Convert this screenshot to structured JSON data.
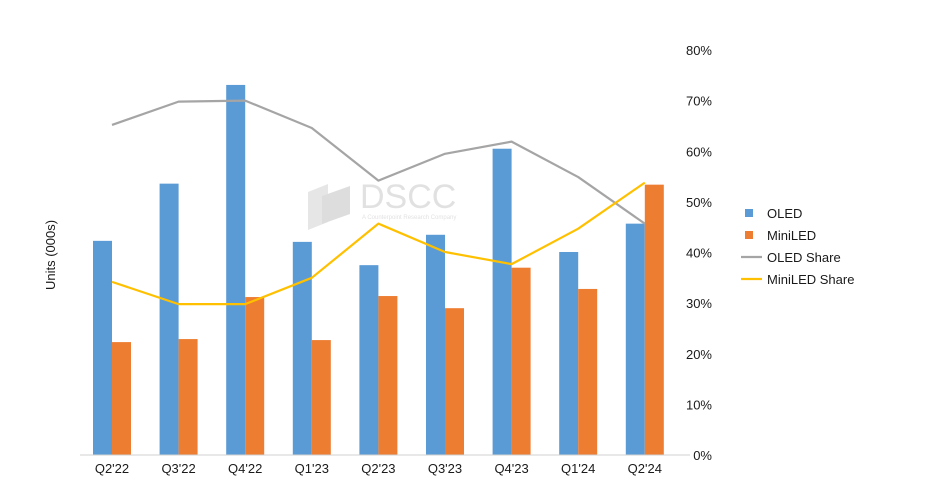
{
  "chart_data": {
    "type": "bar",
    "title": "",
    "xlabel": "",
    "ylabel": "Units  (000s)",
    "y2label": "",
    "categories": [
      "Q2'22",
      "Q3'22",
      "Q4'22",
      "Q1'23",
      "Q2'23",
      "Q3'23",
      "Q4'23",
      "Q1'24",
      "Q2'24"
    ],
    "ylim": [
      0,
      80
    ],
    "y2lim": [
      0,
      80
    ],
    "y2ticks": [
      "0%",
      "10%",
      "20%",
      "30%",
      "40%",
      "50%",
      "60%",
      "70%",
      "80%"
    ],
    "grid": false,
    "legend_position": "right",
    "series": [
      {
        "name": "OLED",
        "type": "bar",
        "axis": "left",
        "color": "#5B9BD5",
        "values": [
          42.3,
          53.6,
          73.1,
          42.1,
          37.5,
          43.5,
          60.5,
          40.1,
          45.7
        ]
      },
      {
        "name": "MiniLED",
        "type": "bar",
        "axis": "left",
        "color": "#ED7D31",
        "values": [
          22.3,
          22.9,
          31.2,
          22.7,
          31.4,
          29.0,
          37.0,
          32.8,
          53.4
        ]
      },
      {
        "name": "OLED Share",
        "type": "line",
        "axis": "right",
        "color": "#A5A5A5",
        "values": [
          65.2,
          69.8,
          70.0,
          64.6,
          54.2,
          59.5,
          61.9,
          54.9,
          45.7
        ]
      },
      {
        "name": "MiniLED Share",
        "type": "line",
        "axis": "right",
        "color": "#FFC000",
        "values": [
          34.2,
          29.8,
          29.8,
          35.0,
          45.7,
          40.1,
          37.7,
          44.7,
          53.8
        ]
      }
    ],
    "watermark": {
      "logo": "DSCC",
      "tagline": "A Counterpoint Research Company"
    }
  }
}
